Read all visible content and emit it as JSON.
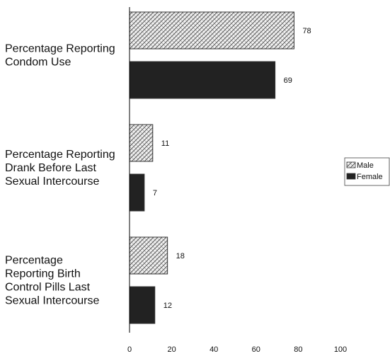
{
  "chart_data": {
    "type": "bar",
    "orientation": "horizontal",
    "categories": [
      [
        "Percentage Reporting",
        "Condom Use"
      ],
      [
        "Percentage Reporting",
        "Drank Before Last",
        "Sexual Intercourse"
      ],
      [
        "Percentage",
        "Reporting Birth",
        "Control Pills Last",
        "Sexual Intercourse"
      ]
    ],
    "series": [
      {
        "name": "Male",
        "values": [
          78,
          11,
          18
        ],
        "fill": "crosshatch"
      },
      {
        "name": "Female",
        "values": [
          69,
          7,
          12
        ],
        "fill": "#222222"
      }
    ],
    "xlim": [
      0,
      100
    ],
    "xticks": [
      "0",
      "20",
      "40",
      "60",
      "80",
      "100"
    ],
    "title": "",
    "xlabel": "",
    "ylabel": "",
    "grid": false,
    "legend_position": "right"
  },
  "colors": {
    "female": "#222222",
    "male_pattern_bg": "#f2f2f2",
    "male_pattern_line": "#555555",
    "axis": "#000000"
  }
}
